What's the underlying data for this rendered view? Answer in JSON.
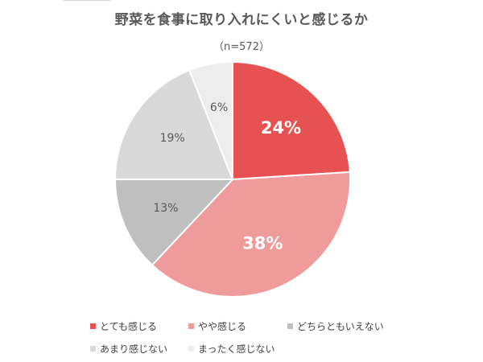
{
  "chart_data": {
    "type": "pie",
    "title": "野菜を食事に取り入れにくいと感じるか",
    "subtitle": "（n=572）",
    "slices": [
      {
        "name": "とても感じる",
        "value": 24,
        "label": "24%",
        "color": "#e65151"
      },
      {
        "name": "やや感じる",
        "value": 38,
        "label": "38%",
        "color": "#f09b9b"
      },
      {
        "name": "どちらともいえない",
        "value": 13,
        "label": "13%",
        "color": "#bfbfbf"
      },
      {
        "name": "あまり感じない",
        "value": 19,
        "label": "19%",
        "color": "#d9d9d9"
      },
      {
        "name": "まったく感じない",
        "value": 6,
        "label": "6%",
        "color": "#ededed"
      }
    ],
    "legend_position": "bottom",
    "start": "12 o'clock",
    "direction": "clockwise"
  }
}
